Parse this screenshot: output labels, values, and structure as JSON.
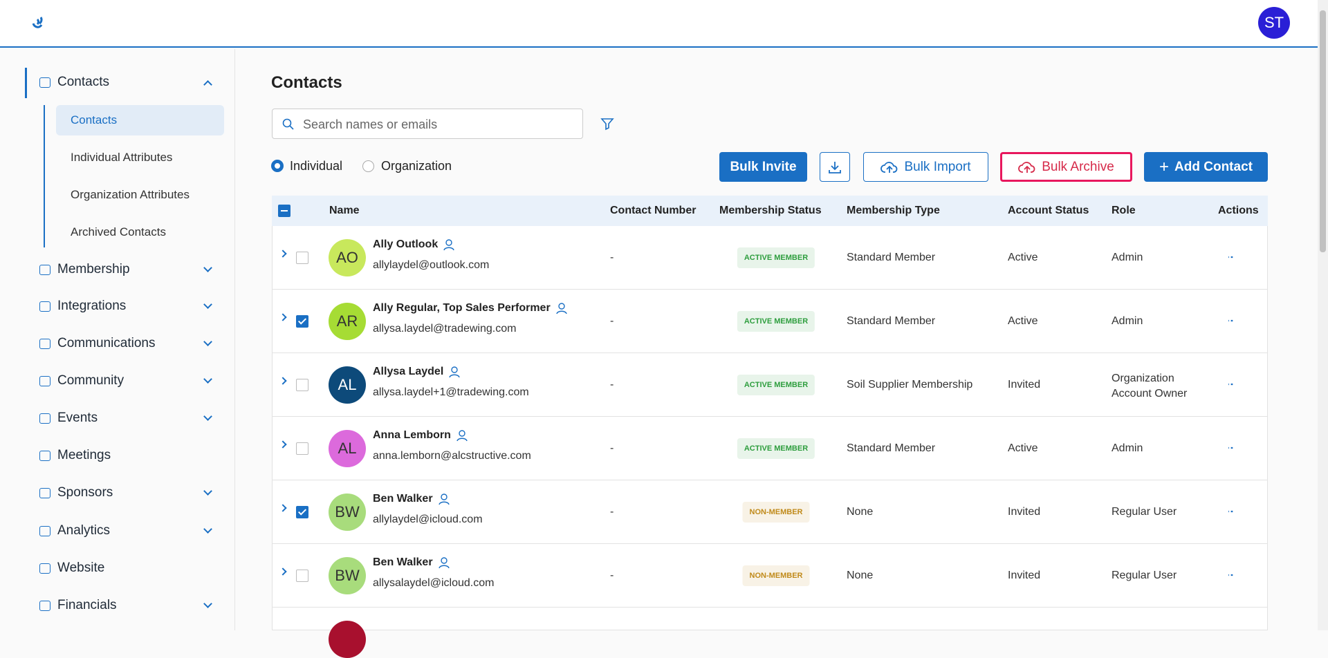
{
  "header": {
    "avatar_initials": "ST"
  },
  "sidebar": {
    "groups": [
      "Contacts",
      "Membership",
      "Integrations",
      "Communications",
      "Community",
      "Events",
      "Meetings",
      "Sponsors",
      "Analytics",
      "Website",
      "Financials"
    ],
    "subitems": [
      "Contacts",
      "Individual Attributes",
      "Organization Attributes",
      "Archived Contacts"
    ]
  },
  "page": {
    "title": "Contacts",
    "search_placeholder": "Search names or emails",
    "radio_options": [
      "Individual",
      "Organization"
    ],
    "buttons": {
      "bulk_invite": "Bulk Invite",
      "bulk_import": "Bulk Import",
      "bulk_archive": "Bulk Archive",
      "add_contact": "Add Contact"
    }
  },
  "table": {
    "columns": [
      "Name",
      "Contact Number",
      "Membership Status",
      "Membership Type",
      "Account Status",
      "Role",
      "Actions"
    ],
    "rows": [
      {
        "initials": "AO",
        "avatar_color": "#c8e85c",
        "name": "Ally Outlook",
        "email": "allylaydel@outlook.com",
        "contact_number": "-",
        "membership_status": "ACTIVE MEMBER",
        "badge_color": "#2e9e3e",
        "membership_type": "Standard Member",
        "account_status": "Active",
        "role": "Admin",
        "checked": false
      },
      {
        "initials": "AR",
        "avatar_color": "#a6dc34",
        "name": "Ally Regular, Top Sales Performer",
        "email": "allysa.laydel@tradewing.com",
        "contact_number": "-",
        "membership_status": "ACTIVE MEMBER",
        "badge_color": "#2e9e3e",
        "membership_type": "Standard Member",
        "account_status": "Active",
        "role": "Admin",
        "checked": true
      },
      {
        "initials": "AL",
        "avatar_color": "#0d4a7a",
        "name": "Allysa Laydel",
        "email": "allysa.laydel+1@tradewing.com",
        "contact_number": "-",
        "membership_status": "ACTIVE MEMBER",
        "badge_color": "#2e9e3e",
        "membership_type": "Soil Supplier Membership",
        "account_status": "Invited",
        "role": "Organization Account Owner",
        "checked": false
      },
      {
        "initials": "AL",
        "avatar_color": "#dc6adc",
        "name": "Anna Lemborn",
        "email": "anna.lemborn@alcstructive.com",
        "contact_number": "-",
        "membership_status": "ACTIVE MEMBER",
        "badge_color": "#2e9e3e",
        "membership_type": "Standard Member",
        "account_status": "Active",
        "role": "Admin",
        "checked": false
      },
      {
        "initials": "BW",
        "avatar_color": "#a8dc7c",
        "name": "Ben Walker",
        "email": "allylaydel@icloud.com",
        "contact_number": "-",
        "membership_status": "NON-MEMBER",
        "badge_color": "#c08a1a",
        "membership_type": "None",
        "account_status": "Invited",
        "role": "Regular User",
        "checked": true
      },
      {
        "initials": "BW",
        "avatar_color": "#a8dc7c",
        "name": "Ben Walker",
        "email": "allysalaydel@icloud.com",
        "contact_number": "-",
        "membership_status": "NON-MEMBER",
        "badge_color": "#c08a1a",
        "membership_type": "None",
        "account_status": "Invited",
        "role": "Regular User",
        "checked": false
      }
    ]
  }
}
